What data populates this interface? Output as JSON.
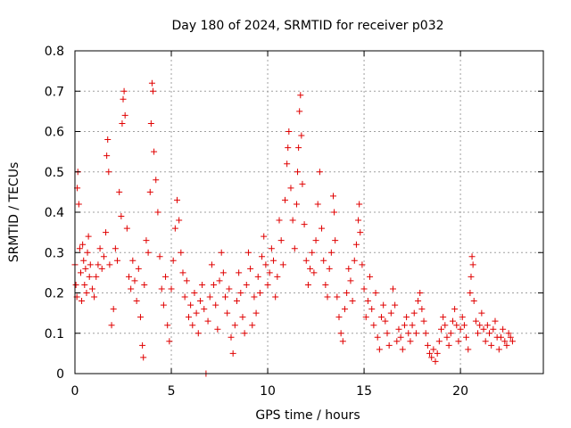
{
  "chart_data": {
    "type": "scatter",
    "title": "Day 180 of 2024, SRMTID for receiver p032",
    "xlabel": "GPS time / hours",
    "ylabel": "SRMTID / TECUs",
    "xlim": [
      0,
      24.3
    ],
    "ylim": [
      0,
      0.8
    ],
    "xticks": [
      0,
      5,
      10,
      15,
      20
    ],
    "xtick_labels": [
      "0",
      "5",
      "10",
      "15",
      "20"
    ],
    "yticks": [
      0,
      0.1,
      0.2,
      0.3,
      0.4,
      0.5,
      0.6,
      0.7,
      0.8
    ],
    "ytick_labels": [
      "0",
      "0.1",
      "0.2",
      "0.3",
      "0.4",
      "0.5",
      "0.6",
      "0.7",
      "0.8"
    ],
    "grid": true,
    "marker": "plus",
    "color": "#e00000",
    "series": [
      {
        "name": "SRMTID",
        "points": [
          [
            0.0,
            0.27
          ],
          [
            0.05,
            0.22
          ],
          [
            0.1,
            0.19
          ],
          [
            0.12,
            0.46
          ],
          [
            0.15,
            0.5
          ],
          [
            0.2,
            0.42
          ],
          [
            0.25,
            0.31
          ],
          [
            0.3,
            0.25
          ],
          [
            0.35,
            0.18
          ],
          [
            0.4,
            0.32
          ],
          [
            0.45,
            0.28
          ],
          [
            0.5,
            0.22
          ],
          [
            0.55,
            0.26
          ],
          [
            0.6,
            0.2
          ],
          [
            0.65,
            0.3
          ],
          [
            0.7,
            0.34
          ],
          [
            0.75,
            0.24
          ],
          [
            0.8,
            0.27
          ],
          [
            0.9,
            0.21
          ],
          [
            1.0,
            0.19
          ],
          [
            1.1,
            0.24
          ],
          [
            1.2,
            0.27
          ],
          [
            1.3,
            0.31
          ],
          [
            1.4,
            0.26
          ],
          [
            1.5,
            0.29
          ],
          [
            1.6,
            0.35
          ],
          [
            1.65,
            0.54
          ],
          [
            1.7,
            0.58
          ],
          [
            1.75,
            0.5
          ],
          [
            1.8,
            0.27
          ],
          [
            1.9,
            0.12
          ],
          [
            2.0,
            0.16
          ],
          [
            2.1,
            0.31
          ],
          [
            2.2,
            0.28
          ],
          [
            2.3,
            0.45
          ],
          [
            2.4,
            0.39
          ],
          [
            2.45,
            0.62
          ],
          [
            2.5,
            0.68
          ],
          [
            2.55,
            0.7
          ],
          [
            2.6,
            0.64
          ],
          [
            2.7,
            0.36
          ],
          [
            2.8,
            0.24
          ],
          [
            2.9,
            0.21
          ],
          [
            3.0,
            0.28
          ],
          [
            3.1,
            0.23
          ],
          [
            3.2,
            0.18
          ],
          [
            3.3,
            0.26
          ],
          [
            3.4,
            0.14
          ],
          [
            3.5,
            0.07
          ],
          [
            3.55,
            0.04
          ],
          [
            3.6,
            0.22
          ],
          [
            3.7,
            0.33
          ],
          [
            3.8,
            0.3
          ],
          [
            3.9,
            0.45
          ],
          [
            3.95,
            0.62
          ],
          [
            4.0,
            0.72
          ],
          [
            4.05,
            0.7
          ],
          [
            4.1,
            0.55
          ],
          [
            4.2,
            0.48
          ],
          [
            4.3,
            0.4
          ],
          [
            4.4,
            0.29
          ],
          [
            4.5,
            0.21
          ],
          [
            4.6,
            0.17
          ],
          [
            4.7,
            0.24
          ],
          [
            4.8,
            0.12
          ],
          [
            4.9,
            0.08
          ],
          [
            5.0,
            0.21
          ],
          [
            5.1,
            0.28
          ],
          [
            5.2,
            0.36
          ],
          [
            5.3,
            0.43
          ],
          [
            5.4,
            0.38
          ],
          [
            5.5,
            0.3
          ],
          [
            5.6,
            0.25
          ],
          [
            5.7,
            0.19
          ],
          [
            5.8,
            0.23
          ],
          [
            5.9,
            0.14
          ],
          [
            6.0,
            0.17
          ],
          [
            6.1,
            0.12
          ],
          [
            6.2,
            0.2
          ],
          [
            6.3,
            0.15
          ],
          [
            6.4,
            0.1
          ],
          [
            6.5,
            0.18
          ],
          [
            6.6,
            0.22
          ],
          [
            6.7,
            0.16
          ],
          [
            6.8,
            0.0
          ],
          [
            6.9,
            0.13
          ],
          [
            7.0,
            0.19
          ],
          [
            7.1,
            0.27
          ],
          [
            7.2,
            0.22
          ],
          [
            7.3,
            0.17
          ],
          [
            7.4,
            0.11
          ],
          [
            7.5,
            0.23
          ],
          [
            7.6,
            0.3
          ],
          [
            7.7,
            0.25
          ],
          [
            7.8,
            0.19
          ],
          [
            7.9,
            0.15
          ],
          [
            8.0,
            0.21
          ],
          [
            8.1,
            0.09
          ],
          [
            8.2,
            0.05
          ],
          [
            8.3,
            0.12
          ],
          [
            8.4,
            0.18
          ],
          [
            8.5,
            0.25
          ],
          [
            8.6,
            0.2
          ],
          [
            8.7,
            0.14
          ],
          [
            8.8,
            0.1
          ],
          [
            8.9,
            0.22
          ],
          [
            9.0,
            0.3
          ],
          [
            9.1,
            0.26
          ],
          [
            9.2,
            0.12
          ],
          [
            9.3,
            0.19
          ],
          [
            9.4,
            0.15
          ],
          [
            9.5,
            0.24
          ],
          [
            9.6,
            0.2
          ],
          [
            9.7,
            0.29
          ],
          [
            9.8,
            0.34
          ],
          [
            9.9,
            0.27
          ],
          [
            10.0,
            0.22
          ],
          [
            10.1,
            0.25
          ],
          [
            10.2,
            0.31
          ],
          [
            10.3,
            0.28
          ],
          [
            10.4,
            0.19
          ],
          [
            10.5,
            0.24
          ],
          [
            10.6,
            0.38
          ],
          [
            10.7,
            0.33
          ],
          [
            10.8,
            0.27
          ],
          [
            10.9,
            0.43
          ],
          [
            11.0,
            0.52
          ],
          [
            11.05,
            0.56
          ],
          [
            11.1,
            0.6
          ],
          [
            11.2,
            0.46
          ],
          [
            11.3,
            0.38
          ],
          [
            11.4,
            0.31
          ],
          [
            11.5,
            0.42
          ],
          [
            11.55,
            0.5
          ],
          [
            11.6,
            0.56
          ],
          [
            11.65,
            0.65
          ],
          [
            11.7,
            0.69
          ],
          [
            11.75,
            0.59
          ],
          [
            11.8,
            0.47
          ],
          [
            11.9,
            0.37
          ],
          [
            12.0,
            0.28
          ],
          [
            12.1,
            0.22
          ],
          [
            12.2,
            0.26
          ],
          [
            12.3,
            0.3
          ],
          [
            12.4,
            0.25
          ],
          [
            12.5,
            0.33
          ],
          [
            12.6,
            0.42
          ],
          [
            12.7,
            0.5
          ],
          [
            12.8,
            0.36
          ],
          [
            12.9,
            0.28
          ],
          [
            13.0,
            0.22
          ],
          [
            13.1,
            0.19
          ],
          [
            13.2,
            0.26
          ],
          [
            13.3,
            0.3
          ],
          [
            13.4,
            0.44
          ],
          [
            13.45,
            0.4
          ],
          [
            13.5,
            0.33
          ],
          [
            13.6,
            0.19
          ],
          [
            13.7,
            0.14
          ],
          [
            13.8,
            0.1
          ],
          [
            13.9,
            0.08
          ],
          [
            14.0,
            0.16
          ],
          [
            14.1,
            0.2
          ],
          [
            14.2,
            0.26
          ],
          [
            14.3,
            0.23
          ],
          [
            14.4,
            0.18
          ],
          [
            14.5,
            0.28
          ],
          [
            14.6,
            0.32
          ],
          [
            14.7,
            0.38
          ],
          [
            14.75,
            0.42
          ],
          [
            14.8,
            0.35
          ],
          [
            14.9,
            0.27
          ],
          [
            15.0,
            0.21
          ],
          [
            15.1,
            0.14
          ],
          [
            15.2,
            0.18
          ],
          [
            15.3,
            0.24
          ],
          [
            15.4,
            0.16
          ],
          [
            15.5,
            0.12
          ],
          [
            15.6,
            0.2
          ],
          [
            15.7,
            0.09
          ],
          [
            15.8,
            0.06
          ],
          [
            15.9,
            0.14
          ],
          [
            16.0,
            0.17
          ],
          [
            16.1,
            0.13
          ],
          [
            16.2,
            0.1
          ],
          [
            16.3,
            0.07
          ],
          [
            16.4,
            0.15
          ],
          [
            16.5,
            0.21
          ],
          [
            16.6,
            0.17
          ],
          [
            16.7,
            0.08
          ],
          [
            16.8,
            0.11
          ],
          [
            16.9,
            0.09
          ],
          [
            17.0,
            0.06
          ],
          [
            17.1,
            0.12
          ],
          [
            17.2,
            0.14
          ],
          [
            17.3,
            0.1
          ],
          [
            17.4,
            0.08
          ],
          [
            17.5,
            0.12
          ],
          [
            17.6,
            0.15
          ],
          [
            17.7,
            0.1
          ],
          [
            17.8,
            0.18
          ],
          [
            17.9,
            0.2
          ],
          [
            18.0,
            0.16
          ],
          [
            18.1,
            0.13
          ],
          [
            18.2,
            0.1
          ],
          [
            18.3,
            0.07
          ],
          [
            18.4,
            0.05
          ],
          [
            18.5,
            0.04
          ],
          [
            18.6,
            0.06
          ],
          [
            18.7,
            0.03
          ],
          [
            18.8,
            0.05
          ],
          [
            18.9,
            0.08
          ],
          [
            19.0,
            0.11
          ],
          [
            19.1,
            0.14
          ],
          [
            19.2,
            0.12
          ],
          [
            19.3,
            0.09
          ],
          [
            19.4,
            0.07
          ],
          [
            19.5,
            0.1
          ],
          [
            19.6,
            0.13
          ],
          [
            19.7,
            0.16
          ],
          [
            19.8,
            0.12
          ],
          [
            19.9,
            0.08
          ],
          [
            20.0,
            0.11
          ],
          [
            20.1,
            0.14
          ],
          [
            20.2,
            0.12
          ],
          [
            20.3,
            0.09
          ],
          [
            20.4,
            0.06
          ],
          [
            20.5,
            0.2
          ],
          [
            20.55,
            0.24
          ],
          [
            20.6,
            0.29
          ],
          [
            20.65,
            0.27
          ],
          [
            20.7,
            0.18
          ],
          [
            20.8,
            0.13
          ],
          [
            20.9,
            0.1
          ],
          [
            21.0,
            0.12
          ],
          [
            21.1,
            0.15
          ],
          [
            21.2,
            0.11
          ],
          [
            21.3,
            0.08
          ],
          [
            21.4,
            0.12
          ],
          [
            21.5,
            0.1
          ],
          [
            21.6,
            0.07
          ],
          [
            21.7,
            0.11
          ],
          [
            21.8,
            0.13
          ],
          [
            21.9,
            0.09
          ],
          [
            22.0,
            0.06
          ],
          [
            22.1,
            0.09
          ],
          [
            22.2,
            0.11
          ],
          [
            22.3,
            0.08
          ],
          [
            22.4,
            0.07
          ],
          [
            22.5,
            0.1
          ],
          [
            22.6,
            0.09
          ],
          [
            22.7,
            0.08
          ]
        ]
      }
    ]
  }
}
